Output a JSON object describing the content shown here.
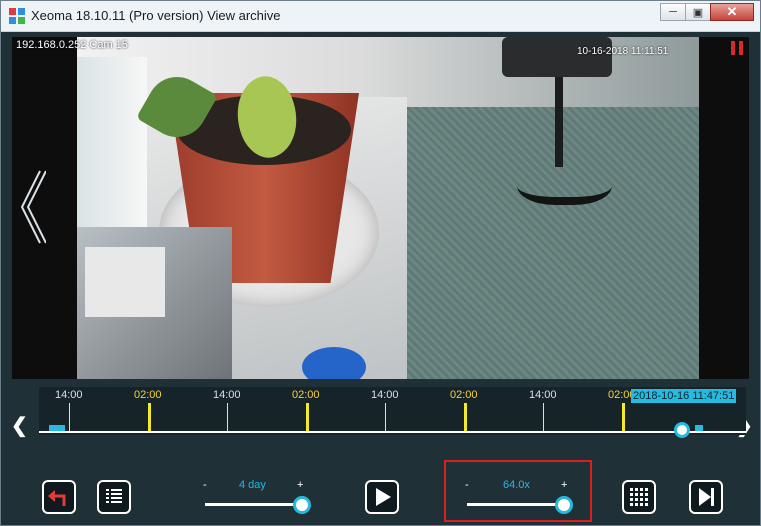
{
  "window": {
    "title": "Xeoma 18.10.11 (Pro version) View archive"
  },
  "video": {
    "camera_label": "192.168.0.252 Cam 15",
    "timestamp": "10-16-2018 11:11:51"
  },
  "timeline": {
    "labels": [
      {
        "text": "14:00",
        "color": "white"
      },
      {
        "text": "02:00",
        "color": "yellow"
      },
      {
        "text": "14:00",
        "color": "white"
      },
      {
        "text": "02:00",
        "color": "yellow"
      },
      {
        "text": "14:00",
        "color": "white"
      },
      {
        "text": "02:00",
        "color": "yellow"
      },
      {
        "text": "14:00",
        "color": "white"
      },
      {
        "text": "02:00",
        "color": "yellow"
      }
    ],
    "current_datetime": "2018-10-16 11:47:51",
    "position_fraction": 0.91
  },
  "controls": {
    "range_slider": {
      "minus": "-",
      "plus": "+",
      "value": "4 day",
      "fraction": 1.0
    },
    "speed_slider": {
      "minus": "-",
      "plus": "+",
      "value": "64.0x",
      "fraction": 1.0
    }
  },
  "colors": {
    "accent": "#27b9e0",
    "day_marker": "#f2ea2e",
    "highlight": "#d92020"
  },
  "icons": {
    "back": "undo-arrow-icon",
    "list": "list-icon",
    "play": "play-icon",
    "grid": "grid-icon",
    "next": "skip-forward-icon"
  }
}
